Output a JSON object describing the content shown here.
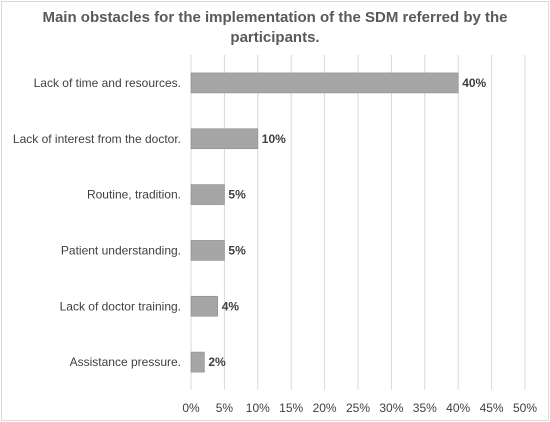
{
  "chart_data": {
    "type": "bar",
    "orientation": "horizontal",
    "title": "Main obstacles for the implementation of the SDM referred by the participants.",
    "categories": [
      "Lack of time and resources.",
      "Lack of interest from the doctor.",
      "Routine, tradition.",
      "Patient understanding.",
      "Lack of doctor training.",
      "Assistance pressure."
    ],
    "values": [
      40,
      10,
      5,
      5,
      4,
      2
    ],
    "data_labels": [
      "40%",
      "10%",
      "5%",
      "5%",
      "4%",
      "2%"
    ],
    "xlim": [
      0,
      50
    ],
    "x_ticks": [
      0,
      5,
      10,
      15,
      20,
      25,
      30,
      35,
      40,
      45,
      50
    ],
    "x_tick_labels": [
      "0%",
      "5%",
      "10%",
      "15%",
      "20%",
      "25%",
      "30%",
      "35%",
      "40%",
      "45%",
      "50%"
    ],
    "grid": true,
    "colors": {
      "bar": "#a6a6a6",
      "bar_border": "#8c8c8c",
      "grid": "#d9d9d9",
      "text": "#404040",
      "title": "#595959"
    }
  }
}
